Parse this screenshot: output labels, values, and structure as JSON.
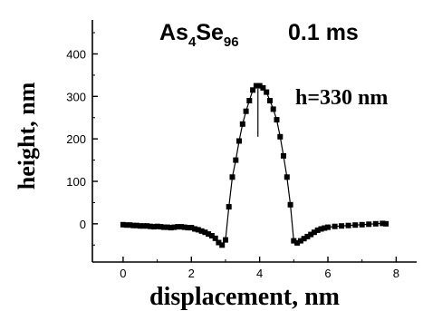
{
  "chart_data": {
    "type": "scatter",
    "title_formula": {
      "a": "As",
      "a_sub": "4",
      "b": "Se",
      "b_sub": "96"
    },
    "title_time": "0.1 ms",
    "xlabel": "displacement, nm",
    "ylabel": "height, nm",
    "annotation": "h=330 nm",
    "xlim": [
      -0.9,
      8.6
    ],
    "ylim": [
      -90,
      480
    ],
    "xticks": [
      0,
      2,
      4,
      6,
      8
    ],
    "yticks": [
      0,
      100,
      200,
      300,
      400
    ],
    "grid": false,
    "marker_color": "#000000",
    "line_color": "#000000",
    "series": [
      {
        "x": [
          0.0,
          0.1,
          0.2,
          0.3,
          0.4,
          0.5,
          0.6,
          0.7,
          0.8,
          0.9,
          1.0,
          1.1,
          1.2,
          1.3,
          1.4,
          1.5,
          1.6,
          1.7,
          1.8,
          1.9,
          2.0,
          2.1,
          2.2,
          2.3,
          2.4,
          2.5,
          2.6,
          2.7,
          2.8,
          2.9,
          3.0,
          3.1,
          3.2,
          3.3,
          3.4,
          3.5,
          3.6,
          3.7,
          3.8,
          3.9,
          4.0,
          4.1,
          4.2,
          4.3,
          4.4,
          4.5,
          4.6,
          4.7,
          4.8,
          4.9,
          5.0,
          5.1,
          5.2,
          5.3,
          5.4,
          5.5,
          5.6,
          5.7,
          5.8,
          5.9,
          6.0,
          6.2,
          6.4,
          6.6,
          6.8,
          7.0,
          7.2,
          7.4,
          7.6,
          7.7
        ],
        "y": [
          -2,
          -3,
          -3,
          -4,
          -4,
          -5,
          -5,
          -5,
          -6,
          -7,
          -6,
          -7,
          -8,
          -8,
          -9,
          -8,
          -7,
          -7,
          -8,
          -9,
          -9,
          -12,
          -14,
          -17,
          -20,
          -24,
          -28,
          -34,
          -44,
          -50,
          -38,
          40,
          110,
          150,
          195,
          235,
          265,
          290,
          315,
          325,
          325,
          320,
          310,
          290,
          270,
          245,
          205,
          160,
          110,
          45,
          -40,
          -45,
          -40,
          -35,
          -30,
          -25,
          -20,
          -15,
          -12,
          -10,
          -8,
          -6,
          -5,
          -4,
          -3,
          -2,
          -1,
          0,
          1,
          0
        ]
      }
    ]
  }
}
